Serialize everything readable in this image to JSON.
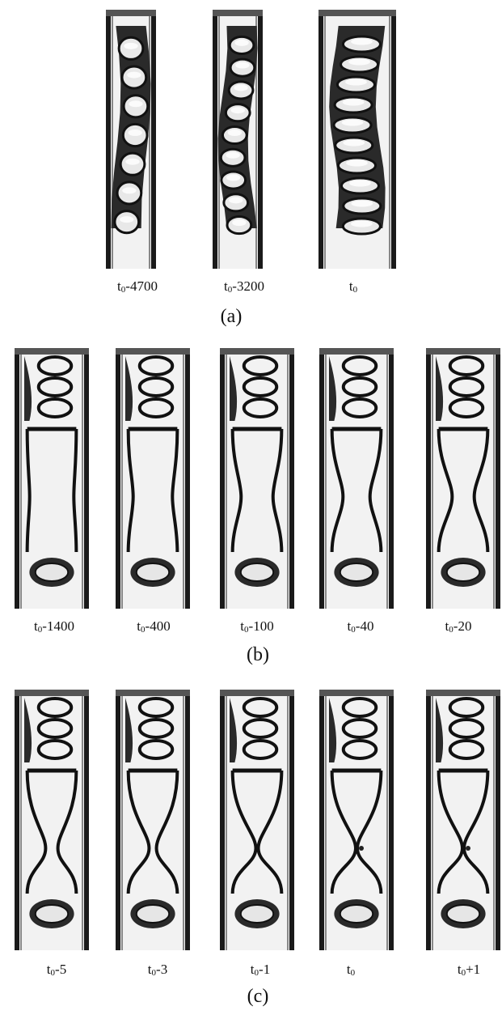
{
  "panels": [
    {
      "label": "(a)",
      "frames": [
        {
          "time_var": "t",
          "sub": "0",
          "suffix": "-4700",
          "style": "ellipse-train",
          "bubbles": 7
        },
        {
          "time_var": "t",
          "sub": "0",
          "suffix": "-3200",
          "style": "ellipse-train",
          "bubbles": 9
        },
        {
          "time_var": "t",
          "sub": "0",
          "suffix": "",
          "style": "ellipse-train",
          "bubbles": 10
        }
      ]
    },
    {
      "label": "(b)",
      "frames": [
        {
          "time_var": "t",
          "sub": "0",
          "suffix": "-1400",
          "style": "necking",
          "neck": 0.9
        },
        {
          "time_var": "t",
          "sub": "0",
          "suffix": "-400",
          "style": "necking",
          "neck": 0.8
        },
        {
          "time_var": "t",
          "sub": "0",
          "suffix": "-100",
          "style": "necking",
          "neck": 0.65
        },
        {
          "time_var": "t",
          "sub": "0",
          "suffix": "-40",
          "style": "necking",
          "neck": 0.55
        },
        {
          "time_var": "t",
          "sub": "0",
          "suffix": "-20",
          "style": "necking",
          "neck": 0.45
        }
      ]
    },
    {
      "label": "(c)",
      "frames": [
        {
          "time_var": "t",
          "sub": "0",
          "suffix": "-5",
          "style": "pinch",
          "neck": 0.25
        },
        {
          "time_var": "t",
          "sub": "0",
          "suffix": "-3",
          "style": "pinch",
          "neck": 0.15
        },
        {
          "time_var": "t",
          "sub": "0",
          "suffix": "-1",
          "style": "pinch",
          "neck": 0.05
        },
        {
          "time_var": "t",
          "sub": "0",
          "suffix": "",
          "style": "pinch",
          "neck": 0.0
        },
        {
          "time_var": "t",
          "sub": "0",
          "suffix": "+1",
          "style": "pinch",
          "neck": 0.0
        }
      ]
    }
  ],
  "colors": {
    "tube_dark": "#1a1a1a",
    "tube_light": "#f2f2f2",
    "fluid_gray": "#cfcfcf",
    "background": "#ffffff"
  }
}
